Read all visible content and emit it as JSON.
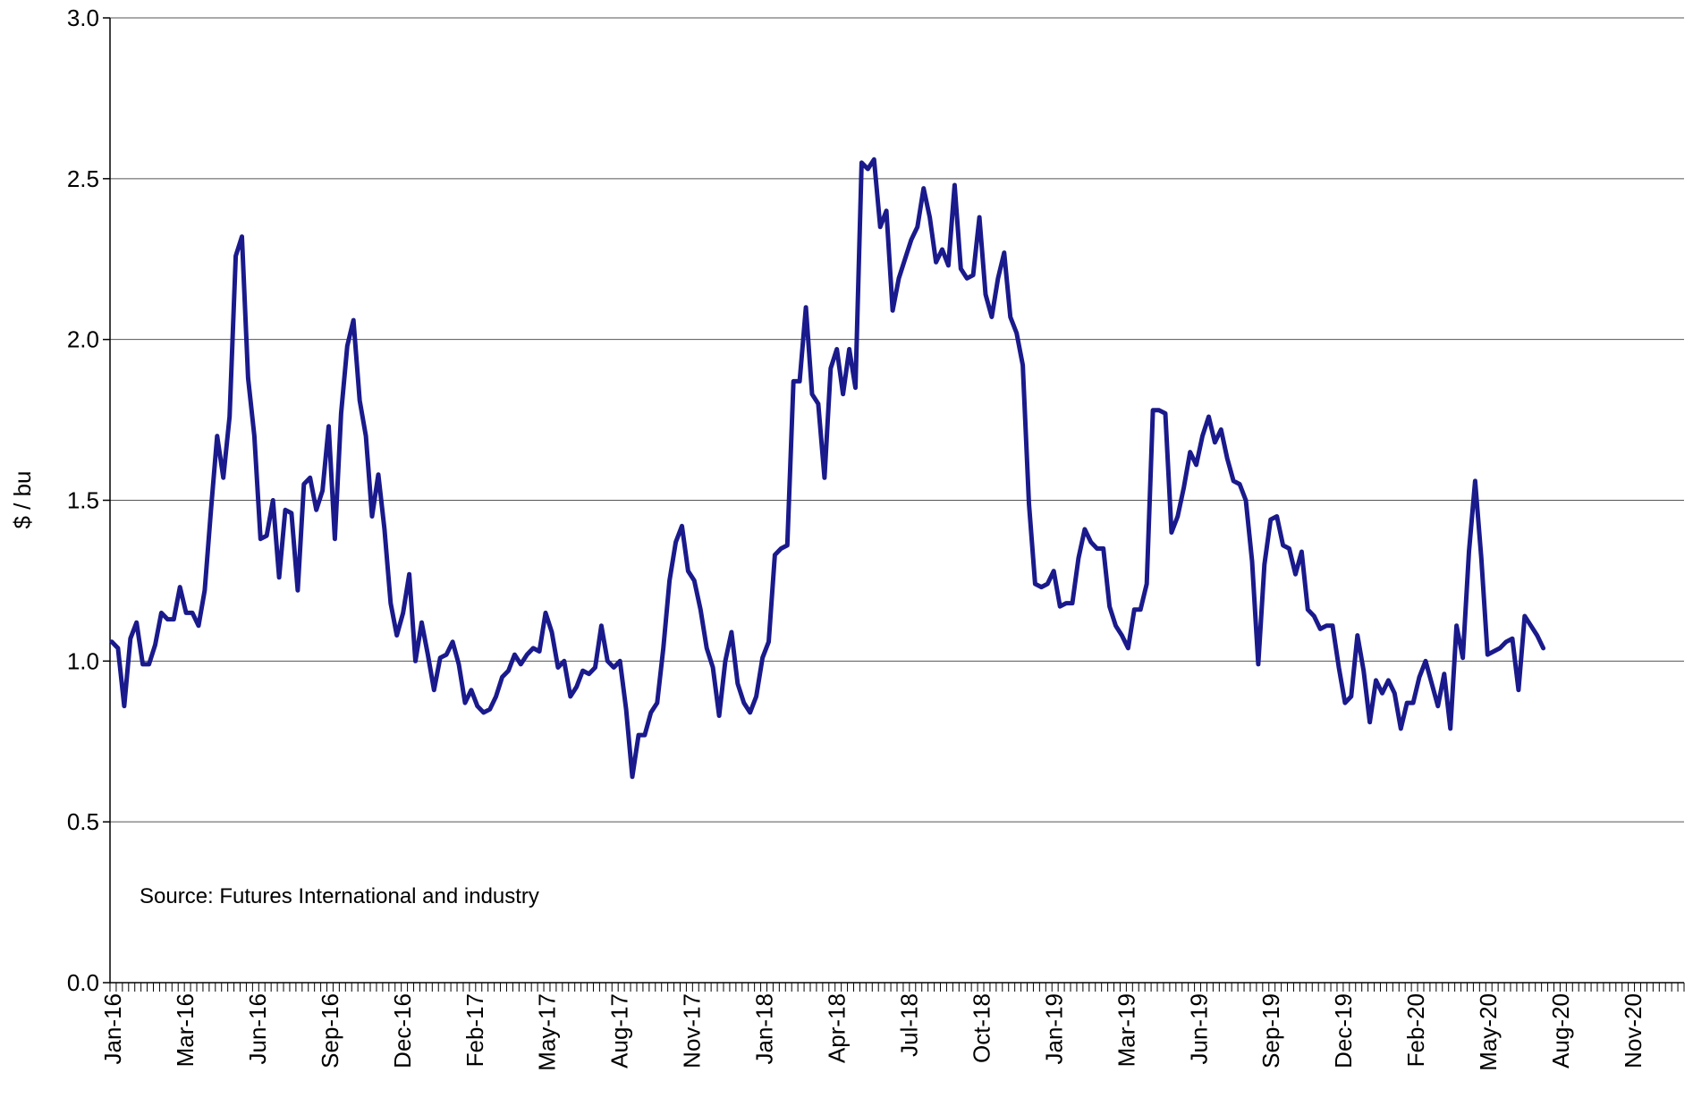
{
  "chart_data": {
    "type": "line",
    "title": "",
    "xlabel": "",
    "ylabel": "$ / bu",
    "ylim": [
      0,
      3
    ],
    "y_ticks": [
      "0.0",
      "0.5",
      "1.0",
      "1.5",
      "2.0",
      "2.5",
      "3.0"
    ],
    "x_tick_labels": [
      "Jan-16",
      "Mar-16",
      "Jun-16",
      "Sep-16",
      "Dec-16",
      "Feb-17",
      "May-17",
      "Aug-17",
      "Nov-17",
      "Jan-18",
      "Apr-18",
      "Jul-18",
      "Oct-18",
      "Jan-19",
      "Mar-19",
      "Jun-19",
      "Sep-19",
      "Dec-19",
      "Feb-20",
      "May-20",
      "Aug-20",
      "Nov-20"
    ],
    "grid": "horizontal",
    "line_color": "#1a1a8c",
    "annotation": "Source: Futures International and industry",
    "series": [
      {
        "values": [
          1.06,
          1.04,
          0.86,
          1.07,
          1.12,
          0.99,
          0.99,
          1.05,
          1.15,
          1.13,
          1.13,
          1.23,
          1.15,
          1.15,
          1.11,
          1.22,
          1.47,
          1.7,
          1.57,
          1.76,
          2.26,
          2.32,
          1.88,
          1.7,
          1.38,
          1.39,
          1.5,
          1.26,
          1.47,
          1.46,
          1.22,
          1.55,
          1.57,
          1.47,
          1.53,
          1.73,
          1.38,
          1.77,
          1.98,
          2.06,
          1.81,
          1.7,
          1.45,
          1.58,
          1.41,
          1.18,
          1.08,
          1.15,
          1.27,
          1.0,
          1.12,
          1.02,
          0.91,
          1.01,
          1.02,
          1.06,
          0.99,
          0.87,
          0.91,
          0.86,
          0.84,
          0.85,
          0.89,
          0.95,
          0.97,
          1.02,
          0.99,
          1.02,
          1.04,
          1.03,
          1.15,
          1.09,
          0.98,
          1.0,
          0.89,
          0.92,
          0.97,
          0.96,
          0.98,
          1.11,
          1.0,
          0.98,
          1.0,
          0.85,
          0.64,
          0.77,
          0.77,
          0.84,
          0.87,
          1.04,
          1.25,
          1.37,
          1.42,
          1.28,
          1.25,
          1.16,
          1.04,
          0.98,
          0.83,
          1.0,
          1.09,
          0.93,
          0.87,
          0.84,
          0.89,
          1.01,
          1.06,
          1.33,
          1.35,
          1.36,
          1.87,
          1.87,
          2.1,
          1.83,
          1.8,
          1.57,
          1.91,
          1.97,
          1.83,
          1.97,
          1.85,
          2.55,
          2.53,
          2.56,
          2.35,
          2.4,
          2.09,
          2.19,
          2.25,
          2.31,
          2.35,
          2.47,
          2.38,
          2.24,
          2.28,
          2.23,
          2.48,
          2.22,
          2.19,
          2.2,
          2.38,
          2.14,
          2.07,
          2.19,
          2.27,
          2.07,
          2.02,
          1.92,
          1.49,
          1.24,
          1.23,
          1.24,
          1.28,
          1.17,
          1.18,
          1.18,
          1.32,
          1.41,
          1.37,
          1.35,
          1.35,
          1.17,
          1.11,
          1.08,
          1.04,
          1.16,
          1.16,
          1.24,
          1.78,
          1.78,
          1.77,
          1.4,
          1.45,
          1.54,
          1.65,
          1.61,
          1.7,
          1.76,
          1.68,
          1.72,
          1.63,
          1.56,
          1.55,
          1.5,
          1.31,
          0.99,
          1.3,
          1.44,
          1.45,
          1.36,
          1.35,
          1.27,
          1.34,
          1.16,
          1.14,
          1.1,
          1.11,
          1.11,
          0.98,
          0.87,
          0.89,
          1.08,
          0.97,
          0.81,
          0.94,
          0.9,
          0.94,
          0.9,
          0.79,
          0.87,
          0.87,
          0.95,
          1.0,
          0.93,
          0.86,
          0.96,
          0.79,
          1.11,
          1.01,
          1.34,
          1.56,
          1.32,
          1.02,
          1.03,
          1.04,
          1.06,
          1.07,
          0.91,
          1.14,
          1.11,
          1.08,
          1.04
        ]
      }
    ]
  }
}
